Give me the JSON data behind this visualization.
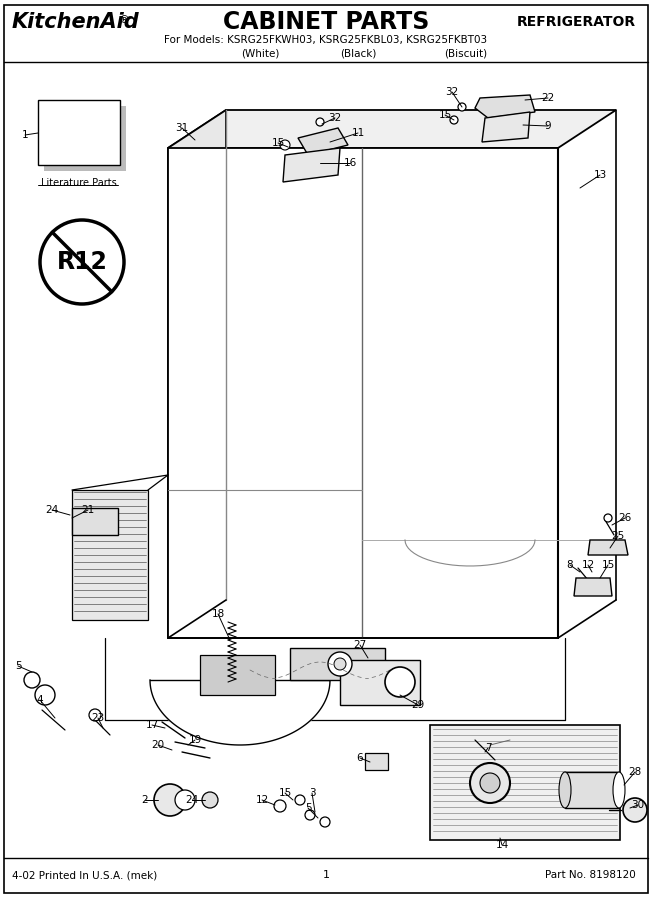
{
  "title_brand": "KitchenAid.",
  "title_center": "CABINET PARTS",
  "title_right": "REFRIGERATOR",
  "subtitle": "For Models: KSRG25FKWH03, KSRG25FKBL03, KSRG25FKBT03",
  "subtitle2": "(White)              (Black)              (Biscuit)",
  "footer_left": "4-02 Printed In U.S.A. (mek)",
  "footer_center": "1",
  "footer_right": "Part No. 8198120",
  "bg_color": "#ffffff",
  "fig_width": 6.52,
  "fig_height": 9.0,
  "dpi": 100
}
